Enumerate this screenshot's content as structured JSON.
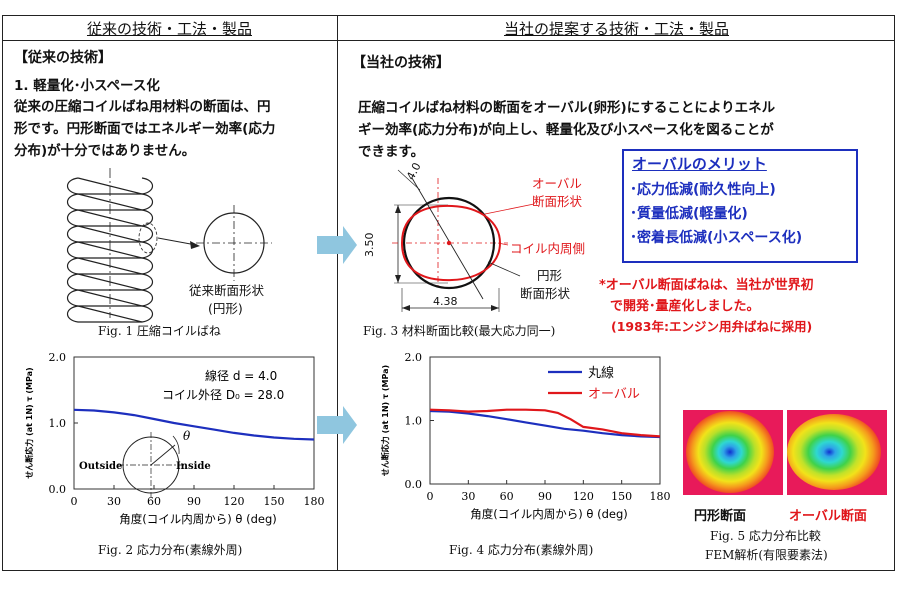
{
  "header": {
    "left": "従来の技術・工法・製品",
    "right": "当社の提案する技術・工法・製品"
  },
  "left": {
    "section_title": "【従来の技術】",
    "item_title": "1.  軽量化･小スペース化",
    "paragraph": [
      "従来の圧縮コイルばね用材料の断面は、円",
      "形です。円形断面ではエネルギー効率(応力",
      "分布)が十分ではありません。"
    ],
    "fig1_label": [
      "従来断面形状",
      "(円形)"
    ],
    "fig1_caption": "Fig. 1  圧縮コイルばね",
    "fig2_caption": "Fig. 2  応力分布(素線外周)"
  },
  "right": {
    "section_title": "【当社の技術】",
    "paragraph": [
      "圧縮コイルばね材料の断面をオーバル(卵形)にすることによりエネル",
      "ギー効率(応力分布)が向上し、軽量化及び小スペース化を図ることが",
      "できます。"
    ],
    "merit_title": "オーバルのメリット",
    "merits": [
      "･応力低減(耐久性向上)",
      "･質量低減(軽量化)",
      "･密着長低減(小スペース化)"
    ],
    "fig3": {
      "oval_label": [
        "オーバル",
        "断面形状"
      ],
      "coil_inner_label": "コイル内周側",
      "circle_label": [
        "円形",
        "断面形状"
      ],
      "dim_diag": "4.0",
      "dim_height": "3.50",
      "dim_width": "4.38",
      "caption": "Fig. 3  材料断面比較(最大応力同一)"
    },
    "note": [
      "*オーバル断面ばねは、当社が世界初",
      "で開発･量産化しました。",
      "(1983年:エンジン用弁ばねに採用)"
    ],
    "fig4_caption": "Fig. 4  応力分布(素線外周)",
    "fig5": {
      "circle_label": "円形断面",
      "oval_label": "オーバル断面",
      "caption": "Fig. 5  応力分布比較",
      "sub": "FEM解析(有限要素法)"
    }
  },
  "colors": {
    "red": "#e0171b",
    "blue": "#1d2fbe",
    "arrow": "#8fc6df"
  },
  "chart_data": [
    {
      "type": "line",
      "xlabel": "角度(コイル内周から)  θ (deg)",
      "ylabel": "せん断応力 (at 1N) τ (MPa)",
      "xticks": [
        "0",
        "30",
        "60",
        "90",
        "120",
        "150",
        "180"
      ],
      "yticks": [
        "0.0",
        "1.0",
        "2.0"
      ],
      "xlim": [
        0,
        180
      ],
      "ylim": [
        0,
        2.0
      ],
      "annotations": [
        "線径  d = 4.0",
        "コイル外径  D₀ = 28.0",
        "Outside",
        "Inside",
        "θ"
      ],
      "series": [
        {
          "color": "#1d2fbe",
          "x": [
            0,
            15,
            30,
            45,
            60,
            75,
            90,
            105,
            120,
            135,
            150,
            165,
            180
          ],
          "y": [
            1.2,
            1.19,
            1.16,
            1.12,
            1.06,
            1.0,
            0.95,
            0.9,
            0.85,
            0.81,
            0.78,
            0.76,
            0.75
          ]
        }
      ]
    },
    {
      "type": "line",
      "xlabel": "角度(コイル内周から)  θ (deg)",
      "ylabel": "せん断応力 (at 1N) τ (MPa)",
      "xticks": [
        "0",
        "30",
        "60",
        "90",
        "120",
        "150",
        "180"
      ],
      "yticks": [
        "0.0",
        "1.0",
        "2.0"
      ],
      "xlim": [
        0,
        180
      ],
      "ylim": [
        0,
        2.0
      ],
      "series": [
        {
          "name": "丸線",
          "color": "#1d2fbe",
          "x": [
            0,
            15,
            30,
            45,
            60,
            75,
            90,
            105,
            120,
            135,
            150,
            165,
            180
          ],
          "y": [
            1.15,
            1.14,
            1.11,
            1.07,
            1.02,
            0.97,
            0.92,
            0.87,
            0.84,
            0.8,
            0.77,
            0.75,
            0.74
          ]
        },
        {
          "name": "オーバル",
          "color": "#e0171b",
          "x": [
            0,
            15,
            30,
            45,
            60,
            75,
            90,
            100,
            110,
            120,
            135,
            150,
            165,
            180
          ],
          "y": [
            1.17,
            1.16,
            1.14,
            1.15,
            1.17,
            1.17,
            1.16,
            1.12,
            1.02,
            0.9,
            0.86,
            0.8,
            0.77,
            0.75
          ]
        }
      ]
    }
  ]
}
